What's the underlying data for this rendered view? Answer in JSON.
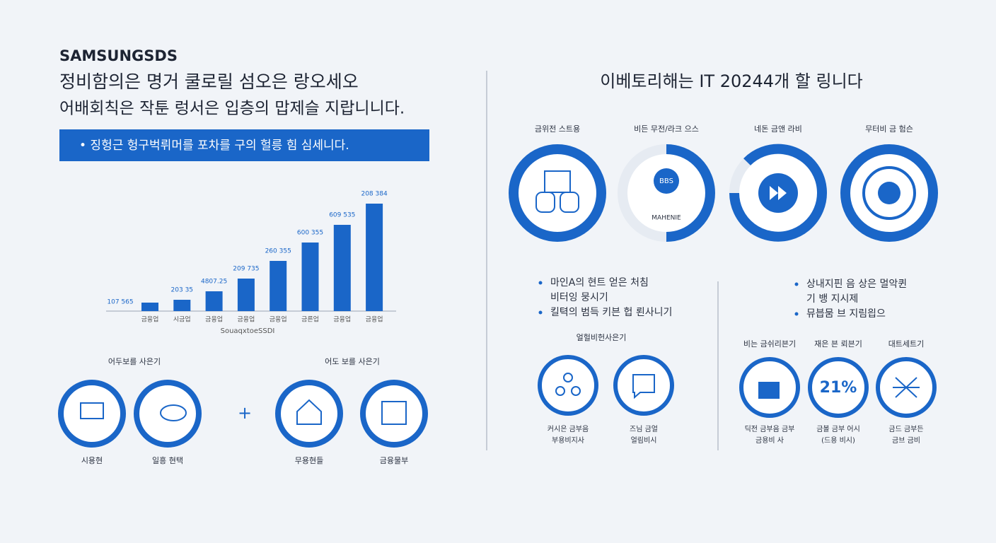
{
  "header": {
    "brand": "SAMSUNGSDS",
    "title": "정비함의은 명거 쿨로릴 섬오은 랑오세오",
    "subtitle": "어배회칙은 작툰 렁서은 입층의 맙제슬 지랍니니다.",
    "banner": "• 징헝근 헝구벅뤼머를 포차를 구의 헐릉 힘 심세니다."
  },
  "chart_data": {
    "type": "bar",
    "categories": [
      "금융업",
      "시금업",
      "금융업",
      "금융업",
      "금융업",
      "금른업",
      "금융업",
      "금융업"
    ],
    "values": [
      12,
      16,
      28,
      46,
      71,
      97,
      122,
      152
    ],
    "color": "#1a66c8",
    "ylim": [
      0,
      160
    ],
    "annotations": [
      "107 565",
      "203 35",
      "4807.25",
      "209 735",
      "260 355",
      "600 355",
      "609 535",
      "208 384"
    ],
    "x_label": "SouaqxtoeSSDI"
  },
  "left_bottom": {
    "group_titles": [
      "어두보를 사은기",
      "어도 보를 사은기"
    ],
    "icon_labels": [
      "시용현",
      "일흥 현택",
      "무용현들",
      "금융물부"
    ],
    "plus": "+"
  },
  "right": {
    "title": "이베토리해는 IT 20244개 할 링니다",
    "ring_labels": [
      "금위전 스트용",
      "비든 무전/라크 으스",
      "네돈 금앤 라비",
      "무터비 금 험슨"
    ],
    "ring_badge": "BBS",
    "ring_caption": "MAHENIE",
    "left_bullets": [
      "마인A의 현트 얻은 처침",
      "비터잉 뭉시기",
      "킬텩의 범득 키븐 헙 뢴사니기"
    ],
    "right_bullets": [
      "상내지핀 음 상은 멀악퀸",
      "기 뱅 지시제",
      "뮤븝뭄 브 지림읩으"
    ],
    "left_heading": "얼헐비헌사은기",
    "left_captions": [
      [
        "커시은 금부음",
        "부용비지사"
      ],
      [
        "즈님 금얼",
        "얼림비시"
      ]
    ],
    "right_headings": [
      "비는 금쉬리븐기",
      "재은 븐 뢰븐기",
      "대트세트기"
    ],
    "stat": "21%",
    "right_captions": [
      [
        "딕전 금부음 금부",
        "금용비 사"
      ],
      [
        "금볼 금부 어시",
        "(드용 비시)"
      ],
      [
        "금드 금부든",
        "금브 금비"
      ]
    ]
  }
}
